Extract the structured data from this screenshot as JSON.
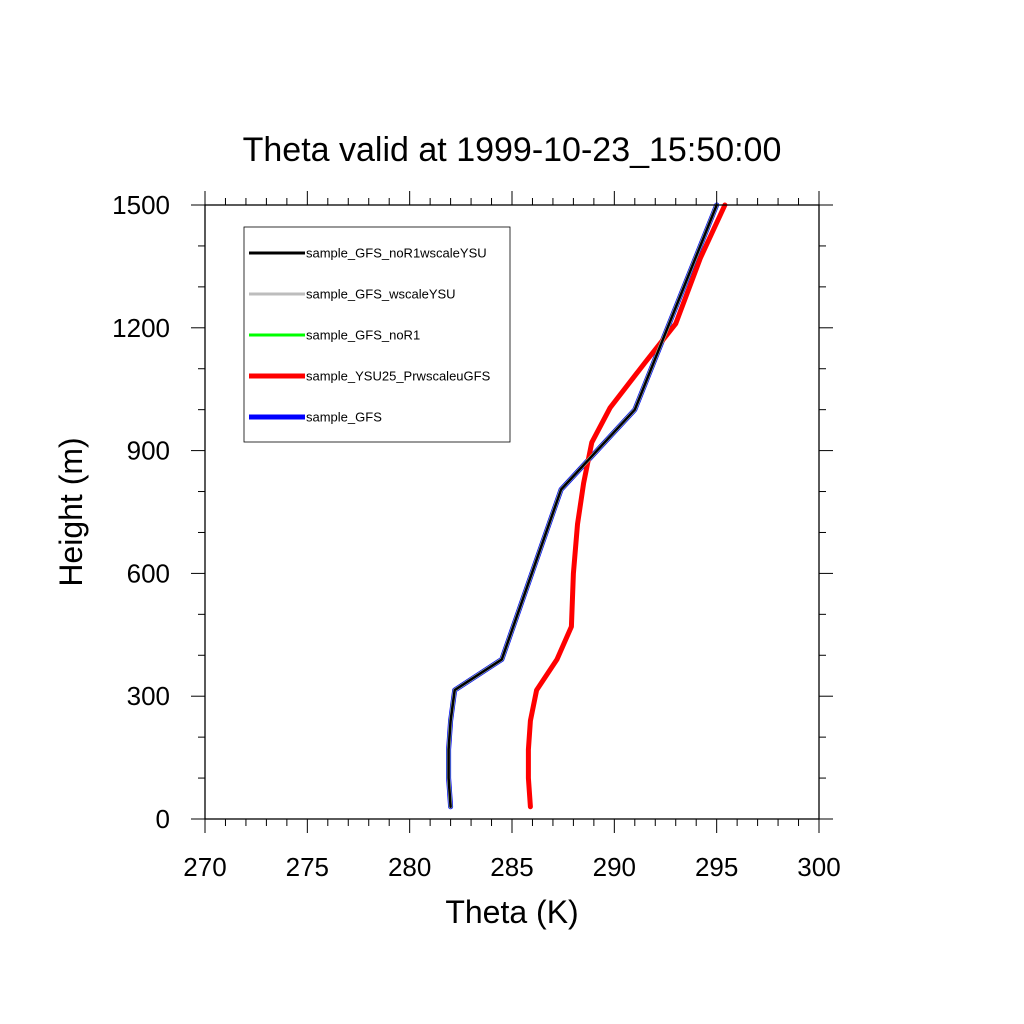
{
  "chart_data": {
    "type": "line",
    "title": "Theta valid at 1999-10-23_15:50:00",
    "xlabel": "Theta (K)",
    "ylabel": "Height (m)",
    "xlim": [
      270,
      300
    ],
    "ylim": [
      0,
      1500
    ],
    "x_ticks": [
      270,
      275,
      280,
      285,
      290,
      295,
      300
    ],
    "y_ticks": [
      0,
      300,
      600,
      900,
      1200,
      1500
    ],
    "x_tick_labels": [
      "270",
      "275",
      "280",
      "285",
      "290",
      "295",
      "300"
    ],
    "y_tick_labels": [
      "0",
      "300",
      "600",
      "900",
      "1200",
      "1500"
    ],
    "legend_position": "top-left",
    "grid": false,
    "series": [
      {
        "name": "sample_GFS_noR1wscaleYSU",
        "color": "#000000",
        "points": [
          [
            282.0,
            30
          ],
          [
            281.9,
            100
          ],
          [
            281.9,
            170
          ],
          [
            282.0,
            240
          ],
          [
            282.2,
            315
          ],
          [
            284.5,
            390
          ],
          [
            287.4,
            805
          ],
          [
            291.0,
            1000
          ],
          [
            295.0,
            1500
          ]
        ]
      },
      {
        "name": "sample_GFS_wscaleYSU",
        "color": "#bdbdbd",
        "points": [
          [
            282.0,
            30
          ],
          [
            281.9,
            100
          ],
          [
            281.9,
            170
          ],
          [
            282.0,
            240
          ],
          [
            282.2,
            315
          ],
          [
            284.5,
            390
          ],
          [
            287.4,
            805
          ],
          [
            291.0,
            1000
          ],
          [
            295.0,
            1500
          ]
        ]
      },
      {
        "name": "sample_GFS_noR1",
        "color": "#00ff00",
        "points": [
          [
            282.0,
            30
          ],
          [
            281.9,
            100
          ],
          [
            281.9,
            170
          ],
          [
            282.0,
            240
          ],
          [
            282.2,
            315
          ],
          [
            284.5,
            390
          ],
          [
            287.4,
            805
          ],
          [
            291.0,
            1000
          ],
          [
            295.0,
            1500
          ]
        ]
      },
      {
        "name": "sample_YSU25_PrwscaleuGFS",
        "color": "#ff0000",
        "points": [
          [
            285.9,
            30
          ],
          [
            285.8,
            100
          ],
          [
            285.8,
            170
          ],
          [
            285.9,
            240
          ],
          [
            286.2,
            315
          ],
          [
            287.2,
            390
          ],
          [
            287.9,
            470
          ],
          [
            288.0,
            600
          ],
          [
            288.2,
            720
          ],
          [
            288.5,
            820
          ],
          [
            288.9,
            920
          ],
          [
            289.8,
            1005
          ],
          [
            291.5,
            1115
          ],
          [
            293.0,
            1210
          ],
          [
            294.2,
            1370
          ],
          [
            295.4,
            1500
          ]
        ]
      },
      {
        "name": "sample_GFS",
        "color": "#0000ff",
        "points": [
          [
            282.0,
            30
          ],
          [
            281.9,
            100
          ],
          [
            281.9,
            170
          ],
          [
            282.0,
            240
          ],
          [
            282.2,
            315
          ],
          [
            284.5,
            390
          ],
          [
            287.4,
            805
          ],
          [
            291.0,
            1000
          ],
          [
            295.0,
            1500
          ]
        ]
      }
    ]
  }
}
